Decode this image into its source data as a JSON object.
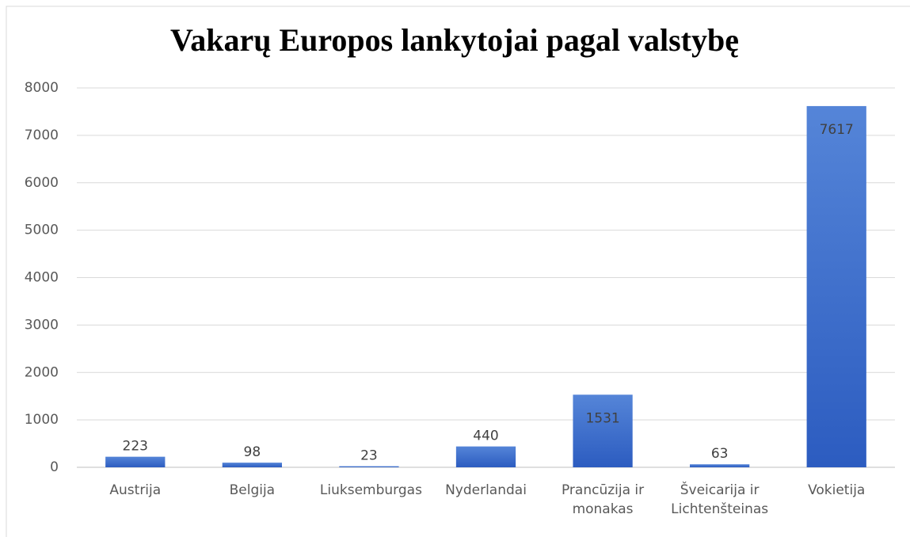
{
  "chart_data": {
    "type": "bar",
    "title": "Vakarų Europos lankytojai pagal valstybę",
    "categories": [
      "Austrija",
      "Belgija",
      "Liuksemburgas",
      "Nyderlandai",
      "Prancūzija ir monakas",
      "Šveicarija ir Lichtenšteinas",
      "Vokietija"
    ],
    "values": [
      223,
      98,
      23,
      440,
      1531,
      63,
      7617
    ],
    "color": "#3a6bcc",
    "ylim": [
      0,
      8000
    ],
    "yticks": [
      0,
      1000,
      2000,
      3000,
      4000,
      5000,
      6000,
      7000,
      8000
    ],
    "grid": true
  }
}
